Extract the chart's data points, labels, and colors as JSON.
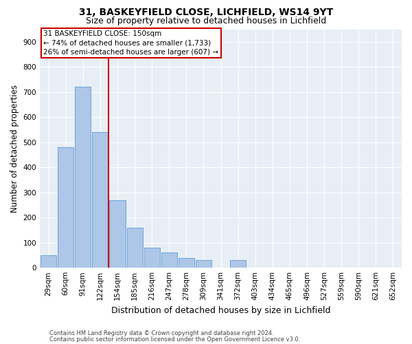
{
  "title1": "31, BASKEYFIELD CLOSE, LICHFIELD, WS14 9YT",
  "title2": "Size of property relative to detached houses in Lichfield",
  "xlabel": "Distribution of detached houses by size in Lichfield",
  "ylabel": "Number of detached properties",
  "categories": [
    "29sqm",
    "60sqm",
    "91sqm",
    "122sqm",
    "154sqm",
    "185sqm",
    "216sqm",
    "247sqm",
    "278sqm",
    "309sqm",
    "341sqm",
    "372sqm",
    "403sqm",
    "434sqm",
    "465sqm",
    "496sqm",
    "527sqm",
    "559sqm",
    "590sqm",
    "621sqm",
    "652sqm"
  ],
  "values": [
    50,
    480,
    720,
    540,
    270,
    160,
    80,
    60,
    40,
    30,
    0,
    30,
    0,
    0,
    0,
    0,
    0,
    0,
    0,
    0,
    0
  ],
  "bar_color": "#aec6e8",
  "bar_edge_color": "#5b9bd5",
  "background_color": "#e8eef5",
  "grid_color": "#ffffff",
  "annotation_line1": "31 BASKEYFIELD CLOSE: 150sqm",
  "annotation_line2": "← 74% of detached houses are smaller (1,733)",
  "annotation_line3": "26% of semi-detached houses are larger (607) →",
  "annotation_box_color": "#cc0000",
  "vline_color": "#cc0000",
  "vline_position": 3.5,
  "ylim": [
    0,
    950
  ],
  "yticks": [
    0,
    100,
    200,
    300,
    400,
    500,
    600,
    700,
    800,
    900
  ],
  "footer1": "Contains HM Land Registry data © Crown copyright and database right 2024.",
  "footer2": "Contains public sector information licensed under the Open Government Licence v3.0.",
  "title1_fontsize": 10,
  "title2_fontsize": 9,
  "tick_fontsize": 7.5,
  "ylabel_fontsize": 8.5,
  "xlabel_fontsize": 9,
  "annotation_fontsize": 7.5,
  "footer_fontsize": 6
}
